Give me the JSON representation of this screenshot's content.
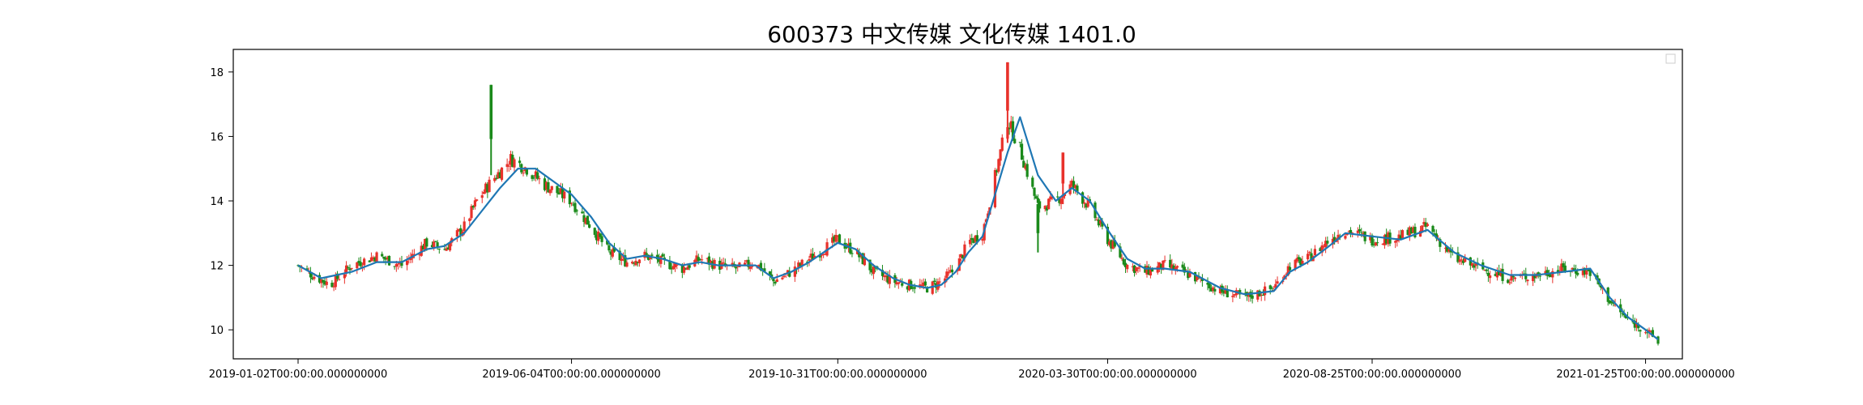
{
  "chart_data": {
    "type": "candlestick",
    "title": "600373 中文传媒 文化传媒 1401.0",
    "xlabel": "",
    "ylabel": "",
    "ylim": [
      9.1,
      18.7
    ],
    "yticks": [
      10,
      12,
      14,
      16,
      18
    ],
    "x_range": [
      "2019-01-02",
      "2021-02-01"
    ],
    "xticks": [
      {
        "date": "2019-01-02",
        "label": "2019-01-02T00:00:00.000000000"
      },
      {
        "date": "2019-06-04",
        "label": "2019-06-04T00:00:00.000000000"
      },
      {
        "date": "2019-10-31",
        "label": "2019-10-31T00:00:00.000000000"
      },
      {
        "date": "2020-03-30",
        "label": "2020-03-30T00:00:00.000000000"
      },
      {
        "date": "2020-08-25",
        "label": "2020-08-25T00:00:00.000000000"
      },
      {
        "date": "2021-01-25",
        "label": "2021-01-25T00:00:00.000000000"
      }
    ],
    "grid": false,
    "legend_placement": "top-right",
    "colors": {
      "up": "#e8312b",
      "down": "#1a8a1a",
      "ma_line": "#1f77b4"
    },
    "series": [
      {
        "kind": "close_approx",
        "dates": [
          "2019-01-02",
          "2019-01-10",
          "2019-01-20",
          "2019-02-01",
          "2019-02-15",
          "2019-03-01",
          "2019-03-15",
          "2019-03-25",
          "2019-04-05",
          "2019-04-12",
          "2019-04-20",
          "2019-05-01",
          "2019-05-10",
          "2019-05-20",
          "2019-06-04",
          "2019-06-15",
          "2019-06-25",
          "2019-07-05",
          "2019-07-15",
          "2019-07-25",
          "2019-08-05",
          "2019-08-15",
          "2019-08-25",
          "2019-09-05",
          "2019-09-15",
          "2019-09-25",
          "2019-10-05",
          "2019-10-15",
          "2019-10-31",
          "2019-11-10",
          "2019-11-20",
          "2019-12-01",
          "2019-12-10",
          "2019-12-20",
          "2019-12-28",
          "2020-01-05",
          "2020-01-12",
          "2020-01-20",
          "2020-02-03",
          "2020-02-10",
          "2020-02-20",
          "2020-03-01",
          "2020-03-10",
          "2020-03-20",
          "2020-03-30",
          "2020-04-10",
          "2020-04-20",
          "2020-05-01",
          "2020-05-15",
          "2020-06-01",
          "2020-06-15",
          "2020-07-01",
          "2020-07-10",
          "2020-07-20",
          "2020-08-01",
          "2020-08-10",
          "2020-08-25",
          "2020-09-10",
          "2020-09-25",
          "2020-10-10",
          "2020-10-25",
          "2020-11-10",
          "2020-11-25",
          "2020-12-10",
          "2020-12-25",
          "2021-01-05",
          "2021-01-15",
          "2021-01-25",
          "2021-02-01"
        ],
        "values": [
          12.0,
          11.7,
          11.4,
          12.0,
          12.3,
          12.0,
          12.7,
          12.5,
          13.2,
          14.0,
          14.6,
          15.3,
          15.0,
          14.5,
          14.0,
          13.2,
          12.4,
          12.1,
          12.3,
          12.1,
          11.9,
          12.2,
          12.0,
          11.9,
          12.1,
          11.5,
          11.8,
          12.2,
          12.8,
          12.4,
          11.8,
          11.5,
          11.4,
          11.3,
          11.5,
          11.9,
          12.7,
          13.0,
          16.5,
          15.6,
          13.8,
          14.0,
          14.5,
          13.8,
          12.8,
          12.0,
          11.8,
          12.0,
          11.7,
          11.2,
          11.0,
          11.3,
          12.0,
          12.2,
          12.8,
          13.1,
          12.8,
          12.9,
          13.2,
          12.2,
          11.9,
          11.6,
          11.7,
          11.9,
          11.8,
          10.9,
          10.3,
          10.0,
          9.6
        ]
      },
      {
        "kind": "moving_average",
        "dates": [
          "2019-01-02",
          "2019-01-15",
          "2019-02-01",
          "2019-02-15",
          "2019-03-01",
          "2019-03-15",
          "2019-03-25",
          "2019-04-05",
          "2019-04-15",
          "2019-04-25",
          "2019-05-05",
          "2019-05-15",
          "2019-05-25",
          "2019-06-04",
          "2019-06-15",
          "2019-06-25",
          "2019-07-05",
          "2019-07-15",
          "2019-07-25",
          "2019-08-05",
          "2019-08-15",
          "2019-08-25",
          "2019-09-05",
          "2019-09-15",
          "2019-09-25",
          "2019-10-05",
          "2019-10-15",
          "2019-10-31",
          "2019-11-10",
          "2019-11-20",
          "2019-12-01",
          "2019-12-10",
          "2019-12-20",
          "2019-12-28",
          "2020-01-05",
          "2020-01-12",
          "2020-01-20",
          "2020-02-03",
          "2020-02-10",
          "2020-02-20",
          "2020-03-01",
          "2020-03-10",
          "2020-03-20",
          "2020-03-30",
          "2020-04-10",
          "2020-04-20",
          "2020-05-01",
          "2020-05-15",
          "2020-06-01",
          "2020-06-15",
          "2020-07-01",
          "2020-07-10",
          "2020-07-20",
          "2020-08-01",
          "2020-08-10",
          "2020-08-25",
          "2020-09-10",
          "2020-09-25",
          "2020-10-10",
          "2020-10-25",
          "2020-11-10",
          "2020-11-25",
          "2020-12-10",
          "2020-12-25",
          "2021-01-05",
          "2021-01-15",
          "2021-01-25",
          "2021-02-01"
        ],
        "values": [
          12.0,
          11.6,
          11.8,
          12.1,
          12.1,
          12.5,
          12.6,
          13.0,
          13.7,
          14.4,
          15.0,
          15.0,
          14.6,
          14.2,
          13.5,
          12.7,
          12.2,
          12.3,
          12.2,
          12.0,
          12.1,
          12.0,
          12.0,
          12.0,
          11.6,
          11.8,
          12.1,
          12.7,
          12.5,
          12.0,
          11.6,
          11.4,
          11.3,
          11.4,
          11.8,
          12.4,
          12.9,
          15.5,
          16.6,
          14.8,
          14.0,
          14.4,
          14.0,
          13.1,
          12.2,
          11.9,
          11.9,
          11.8,
          11.3,
          11.1,
          11.2,
          11.8,
          12.1,
          12.6,
          13.0,
          12.9,
          12.8,
          13.1,
          12.4,
          12.0,
          11.7,
          11.7,
          11.8,
          11.9,
          11.0,
          10.4,
          10.0,
          9.7
        ]
      }
    ],
    "spikes": [
      {
        "date": "2019-04-20",
        "high": 17.6,
        "low": 14.8
      },
      {
        "date": "2020-02-03",
        "high": 18.3,
        "low": 15.8
      },
      {
        "date": "2020-02-20",
        "high": 13.9,
        "low": 12.4
      },
      {
        "date": "2020-03-05",
        "high": 15.5,
        "low": 13.9
      }
    ]
  }
}
